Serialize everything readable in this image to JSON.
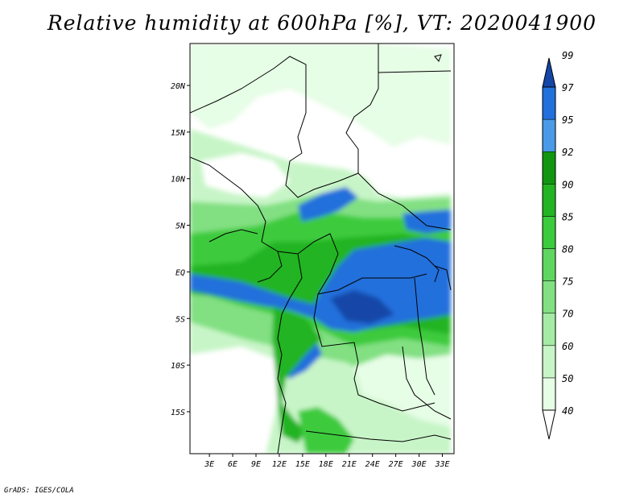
{
  "title": "Relative humidity at 600hPa [%], VT: 2020041900",
  "credit": "GrADS: IGES/COLA",
  "map": {
    "lat_ticks": [
      "20N",
      "15N",
      "10N",
      "5N",
      "EQ",
      "5S",
      "10S",
      "15S"
    ],
    "lat_values": [
      20,
      15,
      10,
      5,
      0,
      -5,
      -10,
      -15
    ],
    "lon_ticks": [
      "3E",
      "6E",
      "9E",
      "12E",
      "15E",
      "18E",
      "21E",
      "24E",
      "27E",
      "30E",
      "33E"
    ],
    "lon_values": [
      3,
      6,
      9,
      12,
      15,
      18,
      21,
      24,
      27,
      30,
      33
    ],
    "lon_range": [
      0.5,
      34.5
    ],
    "lat_range": [
      -19.5,
      24.5
    ]
  },
  "colorbar": {
    "levels": [
      "40",
      "50",
      "60",
      "70",
      "75",
      "80",
      "85",
      "90",
      "92",
      "95",
      "97",
      "99"
    ],
    "colors": [
      "#ffffff",
      "#e6fde6",
      "#c8f5c8",
      "#a5eba5",
      "#82e082",
      "#5fd65f",
      "#3ccb3c",
      "#23b423",
      "#129612",
      "#4a9ae8",
      "#2170dc",
      "#1446a8"
    ]
  }
}
